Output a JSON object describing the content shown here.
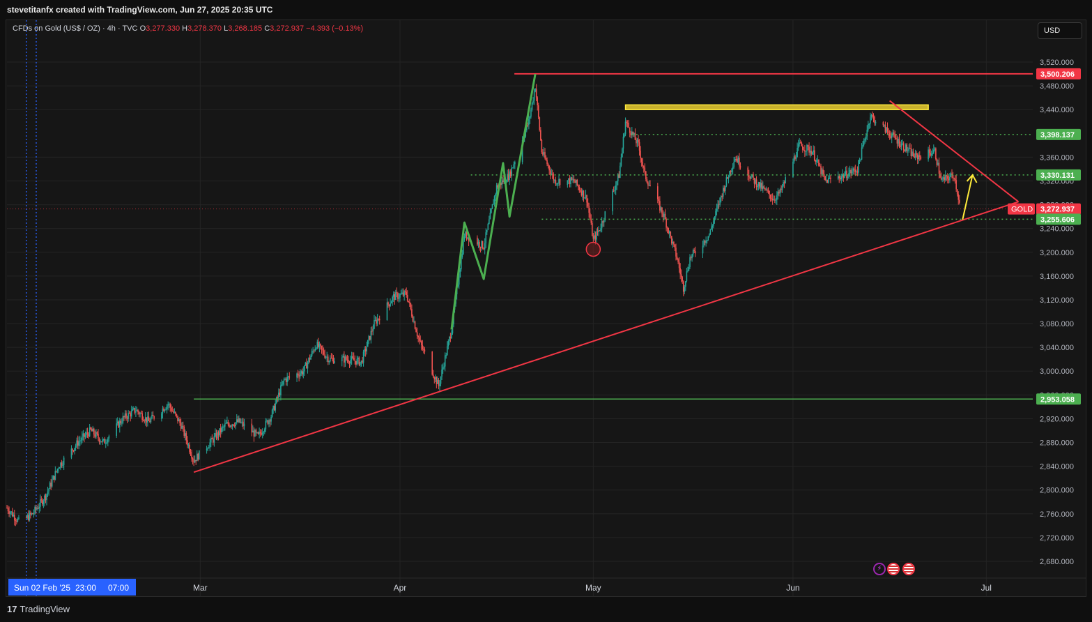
{
  "header": {
    "created_text": "stevetitanfx created with TradingView.com, Jun 27, 2025 20:35 UTC"
  },
  "legend": {
    "symbol": "CFDs on Gold (US$ / OZ) · 4h · TVC",
    "open_label": "O",
    "open": "3,277.330",
    "high_label": "H",
    "high": "3,278.370",
    "low_label": "L",
    "low": "3,268.185",
    "close_label": "C",
    "close": "3,272.937",
    "change": "−4.393 (−0.13%)"
  },
  "currency_button": "USD",
  "footer": {
    "brand": "TradingView"
  },
  "colors": {
    "up": "#26a69a",
    "down": "#ef5350",
    "red_line": "#f23645",
    "green_line": "#4caf50",
    "yellow": "#ffeb3b",
    "blue_dotted": "#2962ff"
  },
  "chart_data": {
    "type": "candlestick",
    "symbol": "GOLD",
    "timeframe": "4h",
    "x_start": "2025-01-30",
    "x_end": "2025-07-12",
    "ylim": [
      2650,
      3550
    ],
    "y_ticks": [
      "3,520.000",
      "3,480.000",
      "3,440.000",
      "3,360.000",
      "3,320.000",
      "3,280.000",
      "3,240.000",
      "3,200.000",
      "3,160.000",
      "3,120.000",
      "3,080.000",
      "3,040.000",
      "3,000.000",
      "2,960.000",
      "2,920.000",
      "2,880.000",
      "2,840.000",
      "2,800.000",
      "2,760.000",
      "2,720.000",
      "2,680.000"
    ],
    "y_tick_values": [
      3520,
      3480,
      3440,
      3360,
      3320,
      3280,
      3240,
      3200,
      3160,
      3120,
      3080,
      3040,
      3000,
      2960,
      2920,
      2880,
      2840,
      2800,
      2760,
      2720,
      2680
    ],
    "x_ticks": [
      {
        "label": "Mar",
        "date": "2025-03-01"
      },
      {
        "label": "Apr",
        "date": "2025-04-01"
      },
      {
        "label": "May",
        "date": "2025-05-01"
      },
      {
        "label": "Jun",
        "date": "2025-06-01"
      },
      {
        "label": "Jul",
        "date": "2025-07-01"
      }
    ],
    "x_highlight": {
      "label": "Sun 02 Feb '25",
      "label2": "23:00",
      "label3": "07:00"
    },
    "price_labels": [
      {
        "value": 3500.206,
        "text": "3,500.206",
        "color": "#f23645"
      },
      {
        "value": 3398.137,
        "text": "3,398.137",
        "color": "#4caf50"
      },
      {
        "value": 3330.131,
        "text": "3,330.131",
        "color": "#4caf50"
      },
      {
        "value": 3272.937,
        "text": "3,272.937",
        "color": "#f23645",
        "tag": "GOLD"
      },
      {
        "value": 3255.606,
        "text": "3,255.606",
        "color": "#4caf50"
      },
      {
        "value": 2953.058,
        "text": "2,953.058",
        "color": "#4caf50"
      }
    ],
    "path": [
      [
        "2025-01-30",
        2770
      ],
      [
        "2025-02-01",
        2745
      ],
      [
        "2025-02-03",
        2760
      ],
      [
        "2025-02-05",
        2790
      ],
      [
        "2025-02-07",
        2840
      ],
      [
        "2025-02-10",
        2880
      ],
      [
        "2025-02-12",
        2900
      ],
      [
        "2025-02-14",
        2880
      ],
      [
        "2025-02-17",
        2920
      ],
      [
        "2025-02-19",
        2935
      ],
      [
        "2025-02-21",
        2915
      ],
      [
        "2025-02-24",
        2945
      ],
      [
        "2025-02-26",
        2910
      ],
      [
        "2025-02-28",
        2850
      ],
      [
        "2025-03-03",
        2885
      ],
      [
        "2025-03-05",
        2910
      ],
      [
        "2025-03-07",
        2915
      ],
      [
        "2025-03-10",
        2890
      ],
      [
        "2025-03-12",
        2925
      ],
      [
        "2025-03-14",
        2985
      ],
      [
        "2025-03-17",
        3000
      ],
      [
        "2025-03-19",
        3045
      ],
      [
        "2025-03-21",
        3020
      ],
      [
        "2025-03-24",
        3020
      ],
      [
        "2025-03-26",
        3015
      ],
      [
        "2025-03-28",
        3080
      ],
      [
        "2025-03-31",
        3125
      ],
      [
        "2025-04-02",
        3130
      ],
      [
        "2025-04-04",
        3050
      ],
      [
        "2025-04-07",
        2975
      ],
      [
        "2025-04-09",
        3070
      ],
      [
        "2025-04-11",
        3230
      ],
      [
        "2025-04-14",
        3210
      ],
      [
        "2025-04-16",
        3310
      ],
      [
        "2025-04-18",
        3330
      ],
      [
        "2025-04-21",
        3420
      ],
      [
        "2025-04-22",
        3480
      ],
      [
        "2025-04-23",
        3370
      ],
      [
        "2025-04-25",
        3320
      ],
      [
        "2025-04-28",
        3320
      ],
      [
        "2025-04-30",
        3290
      ],
      [
        "2025-05-01",
        3220
      ],
      [
        "2025-05-02",
        3240
      ],
      [
        "2025-05-05",
        3330
      ],
      [
        "2025-05-06",
        3420
      ],
      [
        "2025-05-08",
        3380
      ],
      [
        "2025-05-09",
        3330
      ],
      [
        "2025-05-12",
        3260
      ],
      [
        "2025-05-14",
        3190
      ],
      [
        "2025-05-15",
        3140
      ],
      [
        "2025-05-16",
        3190
      ],
      [
        "2025-05-19",
        3230
      ],
      [
        "2025-05-21",
        3300
      ],
      [
        "2025-05-23",
        3360
      ],
      [
        "2025-05-26",
        3320
      ],
      [
        "2025-05-29",
        3290
      ],
      [
        "2025-05-30",
        3300
      ],
      [
        "2025-06-02",
        3380
      ],
      [
        "2025-06-04",
        3370
      ],
      [
        "2025-06-06",
        3320
      ],
      [
        "2025-06-09",
        3330
      ],
      [
        "2025-06-11",
        3340
      ],
      [
        "2025-06-13",
        3430
      ],
      [
        "2025-06-16",
        3400
      ],
      [
        "2025-06-18",
        3380
      ],
      [
        "2025-06-20",
        3360
      ],
      [
        "2025-06-23",
        3370
      ],
      [
        "2025-06-24",
        3320
      ],
      [
        "2025-06-26",
        3330
      ],
      [
        "2025-06-27",
        3273
      ]
    ],
    "annotations": {
      "resistance_top": {
        "value": 3500.206,
        "from": "2025-04-22"
      },
      "supply_zone": {
        "from": "2025-05-06",
        "to": "2025-06-22",
        "low": 3440,
        "high": 3448
      },
      "support_2953": {
        "value": 2953.058,
        "from": "2025-02-28"
      },
      "dotted_3398": {
        "value": 3398.137,
        "from": "2025-05-07"
      },
      "dotted_3330": {
        "value": 3330.131,
        "from": "2025-04-12"
      },
      "dotted_3255": {
        "value": 3255.606,
        "from": "2025-04-23"
      },
      "rising_trendline": [
        [
          "2025-02-28",
          2830
        ],
        [
          "2025-07-06",
          3285
        ]
      ],
      "falling_trendline": [
        [
          "2025-06-16",
          3455
        ],
        [
          "2025-07-06",
          3285
        ]
      ],
      "green_zigzag": [
        [
          "2025-04-09",
          3070
        ],
        [
          "2025-04-11",
          3250
        ],
        [
          "2025-04-14",
          3155
        ],
        [
          "2025-04-17",
          3350
        ],
        [
          "2025-04-18",
          3260
        ],
        [
          "2025-04-22",
          3500
        ]
      ],
      "yellow_arrow": [
        [
          "2025-06-27",
          3255
        ],
        [
          "2025-06-28",
          3330
        ]
      ],
      "red_circle": [
        "2025-05-01",
        3205
      ]
    }
  }
}
